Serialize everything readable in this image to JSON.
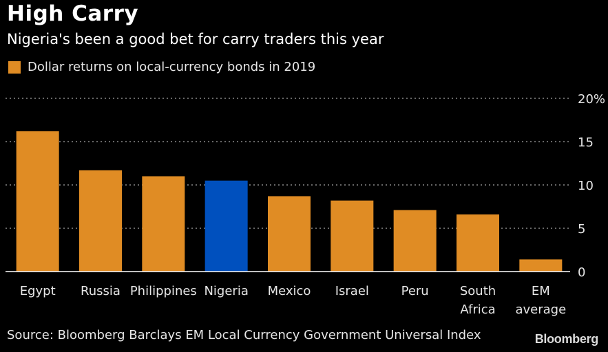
{
  "chart_data": {
    "type": "bar",
    "title": "High Carry",
    "subtitle": "Nigeria's been a good bet for carry traders this year",
    "legend": "Dollar returns on local-currency bonds in 2019",
    "categories": [
      "Egypt",
      "Russia",
      "Philippines",
      "Nigeria",
      "Mexico",
      "Israel",
      "Peru",
      "South Africa",
      "EM average"
    ],
    "category_lines": [
      [
        "Egypt"
      ],
      [
        "Russia"
      ],
      [
        "Philippines"
      ],
      [
        "Nigeria"
      ],
      [
        "Mexico"
      ],
      [
        "Israel"
      ],
      [
        "Peru"
      ],
      [
        "South",
        "Africa"
      ],
      [
        "EM",
        "average"
      ]
    ],
    "values": [
      16.2,
      11.7,
      11.0,
      10.5,
      8.7,
      8.2,
      7.1,
      6.6,
      1.4
    ],
    "highlight": "Nigeria",
    "ylim": [
      0,
      20
    ],
    "yticks": [
      0,
      5,
      10,
      15,
      20
    ],
    "ytick_labels": [
      "0",
      "5",
      "10",
      "15",
      "20%"
    ],
    "xlabel": "",
    "ylabel": "",
    "grid": true,
    "colors": {
      "bar": "#e08c24",
      "highlight": "#0050be",
      "grid": "#8a8a8a",
      "axis": "#ffffff",
      "label": "#e6e6e6"
    }
  },
  "footer": {
    "source": "Source: Bloomberg Barclays EM Local Currency Government Universal Index",
    "brand": "Bloomberg"
  }
}
